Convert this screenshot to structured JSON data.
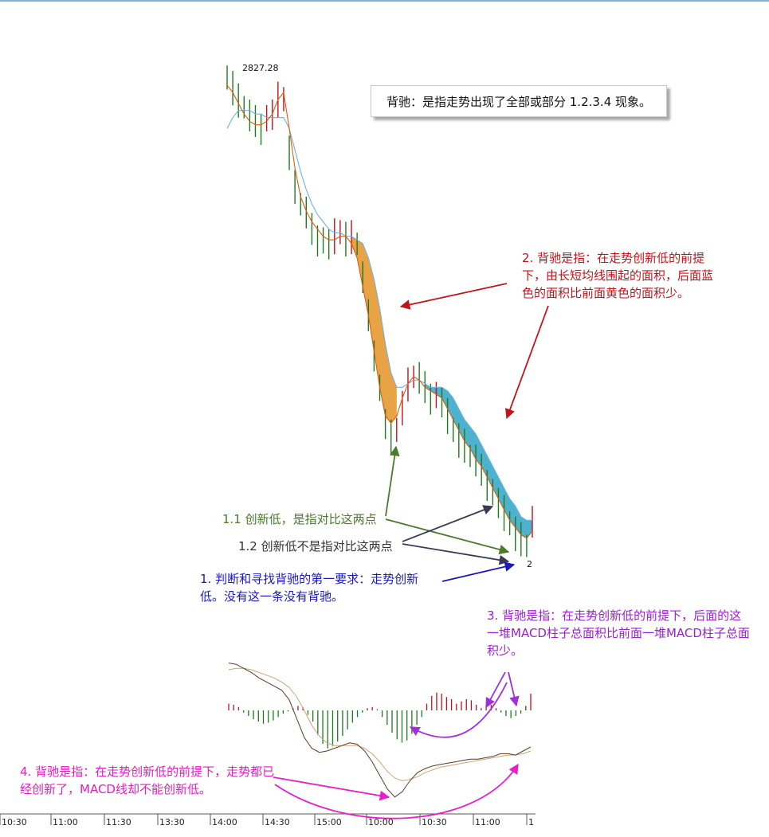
{
  "annotations": {
    "title_box": "背驰：是指走势出现了全部或部分 1.2.3.4 现象。",
    "note2": "2. 背驰是指：在走势创新低的前提下，由长短均线围起的面积，后面蓝色的面积比前面黄色的面积少。",
    "note1_1": "1.1 创新低，是指对比这两点",
    "note1_2": "1.2 创新低不是指对比这两点",
    "note1": "1. 判断和寻找背驰的第一要求：走势创新低。没有这一条没有背驰。",
    "note3": "3. 背驰是指：在走势创新低的前提下，后面的这一堆MACD柱子总面积比前面一堆MACD柱子总面积少。",
    "note4": "4. 背驰是指：在走势创新低的前提下，走势都已经创新了，MACD线却不能创新低。"
  },
  "chart_data": {
    "type": "candlestick",
    "title": "",
    "high_label": "2827.28",
    "low_label": "2",
    "x_ticks": [
      "10:30",
      "11:00",
      "11:30",
      "13:30",
      "14:00",
      "14:30",
      "15:00",
      "10:00",
      "10:30",
      "11:00",
      "1"
    ],
    "price_series": [
      2826,
      2824,
      2820,
      2818,
      2815,
      2814,
      2813,
      2815,
      2816,
      2820,
      2820,
      2806,
      2796,
      2791,
      2788,
      2784,
      2782,
      2781,
      2780,
      2782,
      2783,
      2782,
      2782,
      2780,
      2770,
      2760,
      2750,
      2740,
      2730,
      2726,
      2728,
      2735,
      2741,
      2743,
      2742,
      2740,
      2738,
      2738,
      2736,
      2732,
      2728,
      2726,
      2724,
      2721,
      2719,
      2717,
      2714,
      2711,
      2708,
      2705,
      2702,
      2700,
      2698,
      2696,
      2702
    ],
    "ma_fast": [
      2824,
      2822,
      2819,
      2816,
      2814,
      2813,
      2813,
      2814,
      2816,
      2820,
      2822,
      2812,
      2801,
      2793,
      2789,
      2786,
      2784,
      2782,
      2781,
      2781,
      2782,
      2782,
      2780,
      2776,
      2768,
      2760,
      2750,
      2740,
      2732,
      2730,
      2732,
      2737,
      2741,
      2743,
      2742,
      2740,
      2739,
      2738,
      2737,
      2734,
      2731,
      2728,
      2725,
      2723,
      2720,
      2718,
      2715,
      2712,
      2709,
      2706,
      2703,
      2701,
      2699,
      2698,
      2700
    ],
    "ma_slow": [
      2812,
      2815,
      2817,
      2817,
      2817,
      2816,
      2816,
      2815,
      2815,
      2815,
      2815,
      2812,
      2806,
      2800,
      2795,
      2791,
      2788,
      2786,
      2784,
      2783,
      2783,
      2782,
      2782,
      2781,
      2780,
      2776,
      2770,
      2762,
      2752,
      2744,
      2740,
      2740,
      2741,
      2742,
      2742,
      2741,
      2740,
      2740,
      2740,
      2739,
      2737,
      2734,
      2731,
      2729,
      2727,
      2724,
      2721,
      2718,
      2715,
      2712,
      2709,
      2707,
      2704,
      2703,
      2703
    ],
    "macd_histogram": [
      0.6,
      0.5,
      0.3,
      -0.2,
      -0.5,
      -0.8,
      -1.0,
      -1.2,
      -1.1,
      -0.9,
      -0.6,
      -0.3,
      -0.1,
      0.2,
      0.4,
      0.3,
      -0.4,
      -1.0,
      -2.2,
      -3.0,
      -3.4,
      -3.2,
      -2.8,
      -2.3,
      -1.7,
      -1.1,
      -0.6,
      -0.2,
      0.2,
      0.3,
      0.1,
      -0.6,
      -1.3,
      -2.0,
      -2.6,
      -2.9,
      -2.7,
      -2.1,
      -1.3,
      -0.6,
      0.6,
      1.3,
      1.6,
      1.5,
      1.2,
      1.0,
      0.6,
      0.8,
      1.0,
      0.9,
      0.5,
      0.2,
      0.3,
      0.5,
      0.2,
      -0.2,
      -0.5,
      -0.7,
      -0.5,
      -0.3,
      0.4,
      1.5
    ],
    "macd_dif": [
      3.5,
      3.4,
      3.1,
      2.8,
      2.4,
      2.1,
      1.8,
      1.5,
      0.8,
      -0.6,
      -2.0,
      -2.8,
      -3.1,
      -3.0,
      -2.8,
      -2.6,
      -2.4,
      -2.5,
      -3.0,
      -3.8,
      -4.8,
      -5.8,
      -6.4,
      -6.0,
      -5.2,
      -4.6,
      -4.3,
      -4.1,
      -4.0,
      -3.9,
      -3.8,
      -3.7,
      -3.6,
      -3.6,
      -3.5,
      -3.4,
      -3.2,
      -3.2,
      -3.3,
      -3.0,
      -2.7
    ],
    "macd_dea": [
      3.0,
      3.1,
      3.1,
      3.0,
      2.8,
      2.6,
      2.4,
      2.1,
      1.7,
      1.0,
      0.0,
      -1.1,
      -1.9,
      -2.4,
      -2.6,
      -2.6,
      -2.6,
      -2.6,
      -2.8,
      -3.2,
      -3.8,
      -4.5,
      -5.0,
      -5.2,
      -5.1,
      -4.9,
      -4.6,
      -4.4,
      -4.2,
      -4.1,
      -4.0,
      -3.9,
      -3.8,
      -3.7,
      -3.6,
      -3.5,
      -3.4,
      -3.3,
      -3.3,
      -3.2,
      -3.0
    ],
    "colors": {
      "up": "#c0141c",
      "down": "#1f7a1f",
      "ma_fast": "#e25a10",
      "ma_slow": "#6fb0e6",
      "orange_area": "#e69a30",
      "blue_area": "#3ba9c8"
    }
  }
}
